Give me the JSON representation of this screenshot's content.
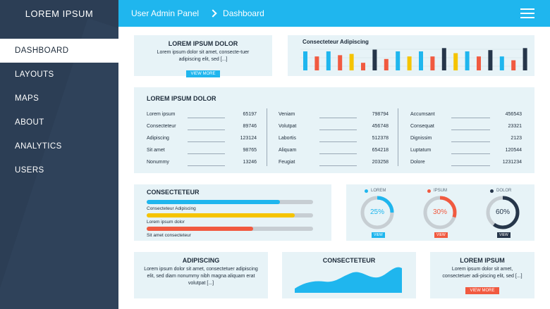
{
  "sidebar": {
    "brand": "LOREM IPSUM",
    "items": [
      {
        "label": "DASHBOARD"
      },
      {
        "label": "LAYOUTS"
      },
      {
        "label": "MAPS"
      },
      {
        "label": "ABOUT"
      },
      {
        "label": "ANALYTICS"
      },
      {
        "label": "USERS"
      }
    ]
  },
  "header": {
    "app": "User Admin Panel",
    "page": "Dashboard"
  },
  "intro": {
    "title": "LOREM IPSUM DOLOR",
    "text": "Lorem ipsum dolor sit amet, consecte-tuer adipiscing elit, sed [...]",
    "button": "VIEW MORE"
  },
  "bars": {
    "title": "Consecteteur Adipiscing",
    "colors": [
      "#1fb6ee",
      "#f15a40",
      "#1fb6ee",
      "#f15a40",
      "#f5c400",
      "#f15a40",
      "#26364a",
      "#f15a40",
      "#1fb6ee",
      "#f5c400",
      "#1fb6ee",
      "#f15a40",
      "#26364a",
      "#f5c400",
      "#1fb6ee",
      "#f15a40",
      "#26364a",
      "#1fb6ee",
      "#f15a40",
      "#26364a"
    ],
    "values": [
      0.75,
      0.55,
      0.75,
      0.6,
      0.65,
      0.3,
      0.82,
      0.45,
      0.75,
      0.55,
      0.75,
      0.55,
      0.88,
      0.68,
      0.75,
      0.55,
      0.8,
      0.55,
      0.4,
      0.88
    ]
  },
  "stats": {
    "title": "LOREM IPSUM DOLOR",
    "columns": [
      [
        {
          "label": "Lorem ipsum",
          "value": "65197"
        },
        {
          "label": "Consecteteur",
          "value": "89746"
        },
        {
          "label": "Adipiscing",
          "value": "123124"
        },
        {
          "label": "Sit amet",
          "value": "98765"
        },
        {
          "label": "Nonummy",
          "value": "13246"
        }
      ],
      [
        {
          "label": "Veniam",
          "value": "798794"
        },
        {
          "label": "Volutpat",
          "value": "456748"
        },
        {
          "label": "Labortis",
          "value": "512378"
        },
        {
          "label": "Aliquam",
          "value": "654218"
        },
        {
          "label": "Feugiat",
          "value": "203258"
        }
      ],
      [
        {
          "label": "Accumsant",
          "value": "456543"
        },
        {
          "label": "Consequat",
          "value": "23321"
        },
        {
          "label": "Dignissim",
          "value": "2123"
        },
        {
          "label": "Luptatum",
          "value": "120544"
        },
        {
          "label": "Dolore",
          "value": "1231234"
        }
      ]
    ]
  },
  "progress": {
    "title": "CONSECTETEUR",
    "bars": [
      {
        "label": "Consecteteur Adipiscing",
        "fraction": 0.8,
        "color": "#1fb6ee"
      },
      {
        "label": "Lorem ipsum dolor",
        "fraction": 0.89,
        "color": "#f5c400"
      },
      {
        "label": "Sit amet consecteteur",
        "fraction": 0.64,
        "color": "#f15a40"
      }
    ]
  },
  "donuts": [
    {
      "label": "LOREM",
      "percent": "25%",
      "fraction": 0.25,
      "color": "#1fb6ee",
      "button": "VIEW"
    },
    {
      "label": "IPSUM",
      "percent": "30%",
      "fraction": 0.3,
      "color": "#f15a40",
      "button": "VIEW"
    },
    {
      "label": "DOLOR",
      "percent": "60%",
      "fraction": 0.6,
      "color": "#26364a",
      "button": "VIEW"
    }
  ],
  "bottom": {
    "left": {
      "title": "ADIPISCING",
      "text": "Lorem ipsum dolor sit amet, consectetuer adipiscing elit, sed diam nonummy nibh magna aliquam erat volutpat [...]"
    },
    "middle": {
      "title": "CONSECTETEUR"
    },
    "right": {
      "title": "LOREM IPSUM",
      "text": "Lorem ipsum dolor sit amet, consectetuer adi-piscing elit, sed [...]",
      "button": "VIEW MORE"
    }
  },
  "colors": {
    "accent": "#1fb6ee",
    "sidebar": "#2c3e55",
    "card": "#e7f3f7",
    "orange": "#f15a40",
    "yellow": "#f5c400",
    "navy": "#26364a"
  }
}
